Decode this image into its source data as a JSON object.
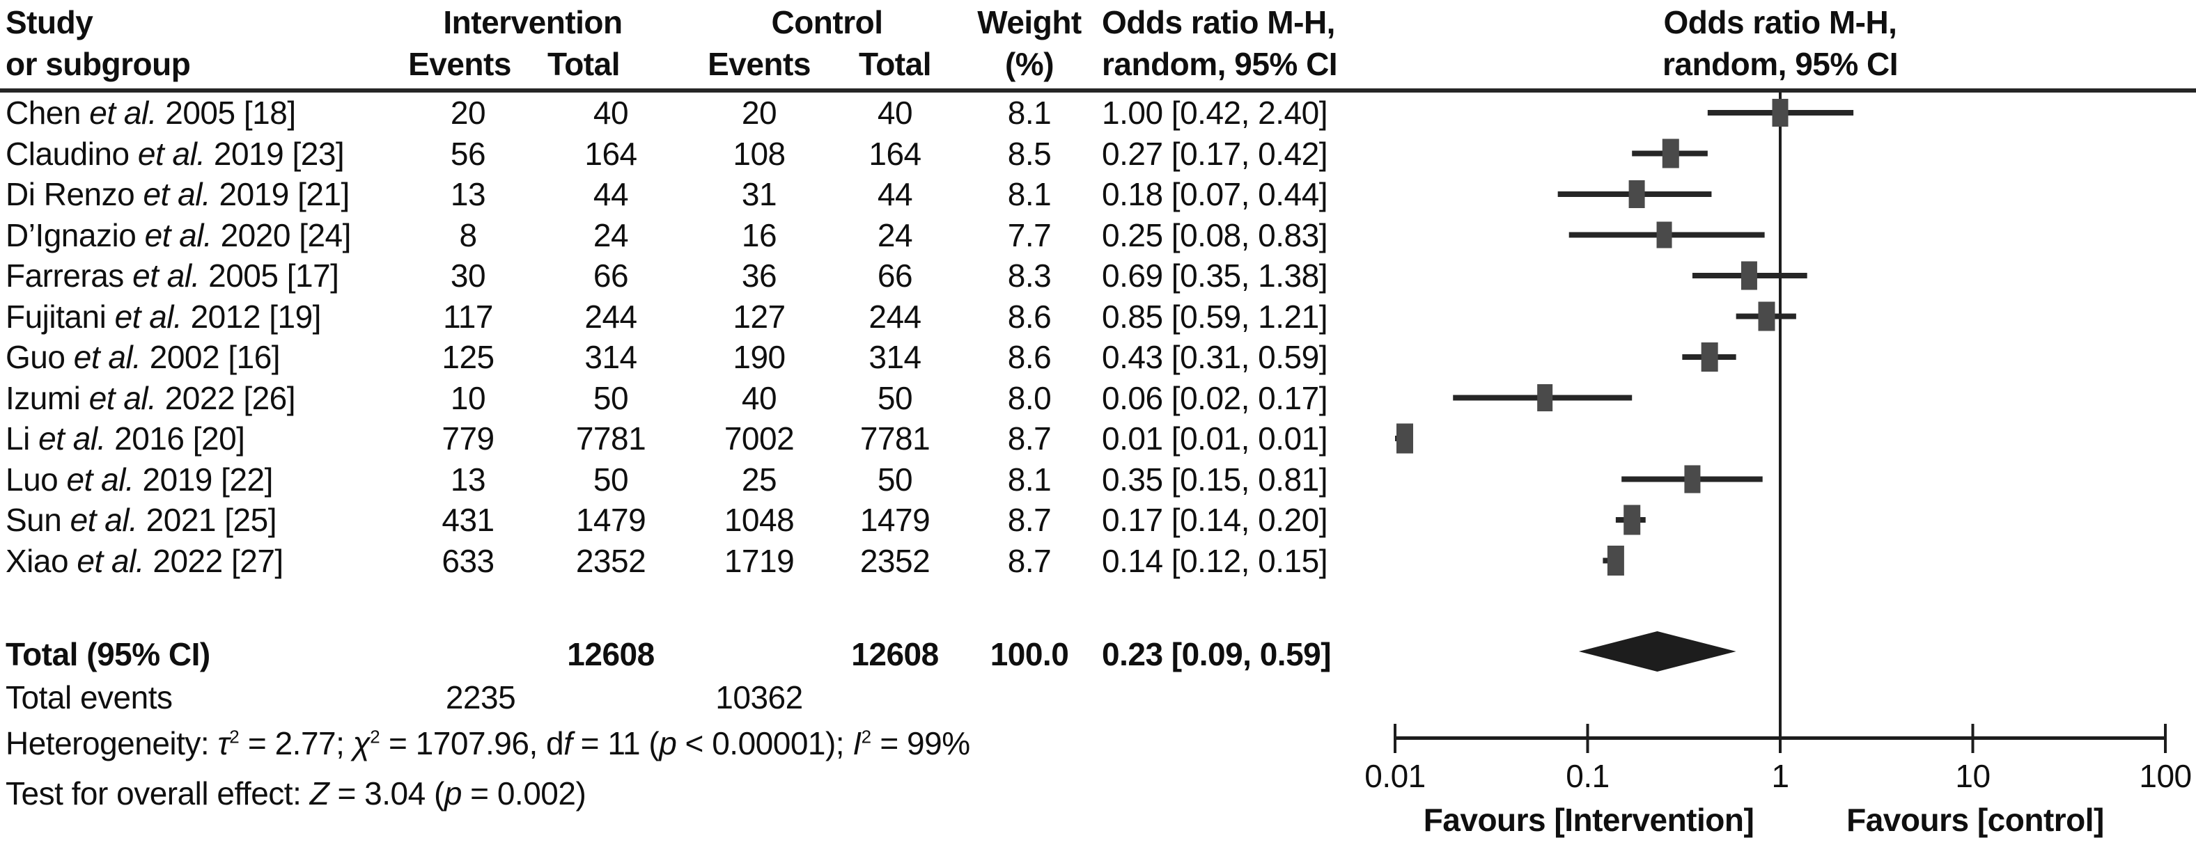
{
  "header": {
    "col1_line1": "Study",
    "col1_line2": "or subgroup",
    "intervention": "Intervention",
    "control": "Control",
    "events": "Events",
    "total": "Total",
    "weight_line1": "Weight",
    "weight_line2": "(%)",
    "or_line1": "Odds ratio M-H,",
    "or_line2": "random, 95% CI",
    "plot_line1": "Odds ratio M-H,",
    "plot_line2": "random, 95% CI"
  },
  "colors": {
    "text": "#0f0f0f",
    "rule": "#262626",
    "ci_line": "#262626",
    "marker": "#4a4a4a",
    "diamond": "#1d1d1d",
    "axis": "#1d1d1d"
  },
  "chart_data": {
    "type": "scatter",
    "subtype": "forest-plot",
    "x_scale": "log10",
    "xlim": [
      0.01,
      100
    ],
    "x_ticks": [
      0.01,
      0.1,
      1,
      10,
      100
    ],
    "x_tick_labels": [
      "0.01",
      "0.1",
      "1",
      "10",
      "100"
    ],
    "vertical_ref_line": 1,
    "favours_left": "Favours [Intervention]",
    "favours_right": "Favours [control]",
    "studies": [
      {
        "label_pre": "Chen",
        "label_italic": "et al.",
        "label_post": "2005 [18]",
        "intervention_events": "20",
        "intervention_total": "40",
        "control_events": "20",
        "control_total": "40",
        "weight": "8.1",
        "or": 1.0,
        "ci_low": 0.42,
        "ci_high": 2.4,
        "or_text": "1.00 [0.42, 2.40]"
      },
      {
        "label_pre": "Claudino",
        "label_italic": "et al.",
        "label_post": "2019 [23]",
        "intervention_events": "56",
        "intervention_total": "164",
        "control_events": "108",
        "control_total": "164",
        "weight": "8.5",
        "or": 0.27,
        "ci_low": 0.17,
        "ci_high": 0.42,
        "or_text": "0.27 [0.17, 0.42]"
      },
      {
        "label_pre": "Di Renzo",
        "label_italic": "et al.",
        "label_post": "2019 [21]",
        "intervention_events": "13",
        "intervention_total": "44",
        "control_events": "31",
        "control_total": "44",
        "weight": "8.1",
        "or": 0.18,
        "ci_low": 0.07,
        "ci_high": 0.44,
        "or_text": "0.18 [0.07, 0.44]"
      },
      {
        "label_pre": "D’Ignazio",
        "label_italic": "et al.",
        "label_post": "2020 [24]",
        "intervention_events": "8",
        "intervention_total": "24",
        "control_events": "16",
        "control_total": "24",
        "weight": "7.7",
        "or": 0.25,
        "ci_low": 0.08,
        "ci_high": 0.83,
        "or_text": "0.25 [0.08, 0.83]"
      },
      {
        "label_pre": "Farreras",
        "label_italic": "et al.",
        "label_post": "2005 [17]",
        "intervention_events": "30",
        "intervention_total": "66",
        "control_events": "36",
        "control_total": "66",
        "weight": "8.3",
        "or": 0.69,
        "ci_low": 0.35,
        "ci_high": 1.38,
        "or_text": "0.69 [0.35, 1.38]"
      },
      {
        "label_pre": "Fujitani",
        "label_italic": "et al.",
        "label_post": "2012 [19]",
        "intervention_events": "117",
        "intervention_total": "244",
        "control_events": "127",
        "control_total": "244",
        "weight": "8.6",
        "or": 0.85,
        "ci_low": 0.59,
        "ci_high": 1.21,
        "or_text": "0.85 [0.59, 1.21]"
      },
      {
        "label_pre": "Guo",
        "label_italic": "et al.",
        "label_post": "2002 [16]",
        "intervention_events": "125",
        "intervention_total": "314",
        "control_events": "190",
        "control_total": "314",
        "weight": "8.6",
        "or": 0.43,
        "ci_low": 0.31,
        "ci_high": 0.59,
        "or_text": "0.43 [0.31, 0.59]"
      },
      {
        "label_pre": "Izumi",
        "label_italic": "et al.",
        "label_post": "2022 [26]",
        "intervention_events": "10",
        "intervention_total": "50",
        "control_events": "40",
        "control_total": "50",
        "weight": "8.0",
        "or": 0.06,
        "ci_low": 0.02,
        "ci_high": 0.17,
        "or_text": "0.06 [0.02, 0.17]"
      },
      {
        "label_pre": "Li",
        "label_italic": "et al.",
        "label_post": "2016 [20]",
        "intervention_events": "779",
        "intervention_total": "7781",
        "control_events": "7002",
        "control_total": "7781",
        "weight": "8.7",
        "or": 0.01,
        "ci_low": 0.01,
        "ci_high": 0.01,
        "or_text": "0.01 [0.01, 0.01]"
      },
      {
        "label_pre": "Luo",
        "label_italic": "et al.",
        "label_post": "2019 [22]",
        "intervention_events": "13",
        "intervention_total": "50",
        "control_events": "25",
        "control_total": "50",
        "weight": "8.1",
        "or": 0.35,
        "ci_low": 0.15,
        "ci_high": 0.81,
        "or_text": "0.35 [0.15, 0.81]"
      },
      {
        "label_pre": "Sun",
        "label_italic": "et al.",
        "label_post": "2021 [25]",
        "intervention_events": "431",
        "intervention_total": "1479",
        "control_events": "1048",
        "control_total": "1479",
        "weight": "8.7",
        "or": 0.17,
        "ci_low": 0.14,
        "ci_high": 0.2,
        "or_text": "0.17 [0.14, 0.20]"
      },
      {
        "label_pre": "Xiao",
        "label_italic": "et al.",
        "label_post": "2022 [27]",
        "intervention_events": "633",
        "intervention_total": "2352",
        "control_events": "1719",
        "control_total": "2352",
        "weight": "8.7",
        "or": 0.14,
        "ci_low": 0.12,
        "ci_high": 0.15,
        "or_text": "0.14 [0.12, 0.15]"
      }
    ],
    "total": {
      "label": "Total (95% CI)",
      "intervention_total": "12608",
      "control_total": "12608",
      "weight": "100.0",
      "or": 0.23,
      "ci_low": 0.09,
      "ci_high": 0.59,
      "or_text": "0.23 [0.09, 0.59]"
    },
    "total_events": {
      "label": "Total events",
      "intervention": "2235",
      "control": "10362"
    }
  },
  "stats": {
    "heterogeneity": [
      {
        "t": "Heterogeneity: "
      },
      {
        "t": "τ",
        "i": true
      },
      {
        "t": "2",
        "sup": true
      },
      {
        "t": " = 2.77; "
      },
      {
        "t": "χ",
        "i": true
      },
      {
        "t": "2",
        "sup": true
      },
      {
        "t": " = 1707.96, d"
      },
      {
        "t": "f",
        "i": true
      },
      {
        "t": " = 11 ("
      },
      {
        "t": "p",
        "i": true
      },
      {
        "t": " < 0.00001); "
      },
      {
        "t": "I",
        "i": true
      },
      {
        "t": "2",
        "sup": true
      },
      {
        "t": " = 99%"
      }
    ],
    "test": [
      {
        "t": "Test for overall effect: "
      },
      {
        "t": "Z",
        "i": true
      },
      {
        "t": " = 3.04 ("
      },
      {
        "t": "p",
        "i": true
      },
      {
        "t": " = 0.002)"
      }
    ]
  }
}
